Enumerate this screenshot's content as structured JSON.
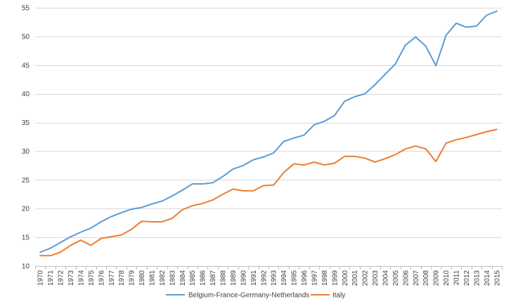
{
  "chart_data": {
    "type": "line",
    "title": "",
    "xlabel": "",
    "ylabel": "",
    "ylim": [
      10,
      55
    ],
    "yticks": [
      10,
      15,
      20,
      25,
      30,
      35,
      40,
      45,
      50,
      55
    ],
    "grid": true,
    "legend_position": "bottom",
    "x": [
      "1970",
      "1971",
      "1972",
      "1973",
      "1974",
      "1975",
      "1976",
      "1977",
      "1978",
      "1979",
      "1980",
      "1981",
      "1982",
      "1983",
      "1984",
      "1985",
      "1986",
      "1987",
      "1988",
      "1989",
      "1990",
      "1991",
      "1992",
      "1993",
      "1994",
      "1995",
      "1996",
      "1997",
      "1998",
      "1999",
      "2000",
      "2001",
      "2002",
      "2003",
      "2004",
      "2005",
      "2006",
      "2007",
      "2008",
      "2009",
      "2010",
      "2011",
      "2012",
      "2013",
      "2014",
      "2015"
    ],
    "series": [
      {
        "name": "Belgium-France-Germany-Netherlands",
        "color": "#5b9bd5",
        "values": [
          12.4,
          13.1,
          14.1,
          15.1,
          15.9,
          16.6,
          17.7,
          18.6,
          19.3,
          19.9,
          20.2,
          20.8,
          21.3,
          22.2,
          23.2,
          24.3,
          24.3,
          24.5,
          25.6,
          26.9,
          27.5,
          28.5,
          29.0,
          29.7,
          31.7,
          32.3,
          32.8,
          34.6,
          35.2,
          36.2,
          38.7,
          39.5,
          40.0,
          41.6,
          43.4,
          45.2,
          48.5,
          49.9,
          48.3,
          44.9,
          50.2,
          52.3,
          51.6,
          51.8,
          53.7,
          54.4
        ]
      },
      {
        "name": "Italy",
        "color": "#ed7d31",
        "values": [
          11.8,
          11.8,
          12.4,
          13.6,
          14.5,
          13.6,
          14.8,
          15.1,
          15.4,
          16.4,
          17.8,
          17.7,
          17.7,
          18.3,
          19.8,
          20.5,
          20.9,
          21.5,
          22.5,
          23.4,
          23.1,
          23.1,
          24.0,
          24.1,
          26.3,
          27.8,
          27.6,
          28.1,
          27.6,
          27.9,
          29.1,
          29.1,
          28.8,
          28.1,
          28.7,
          29.4,
          30.4,
          30.9,
          30.4,
          28.2,
          31.4,
          32.0,
          32.4,
          32.9,
          33.4,
          33.8
        ]
      }
    ]
  }
}
